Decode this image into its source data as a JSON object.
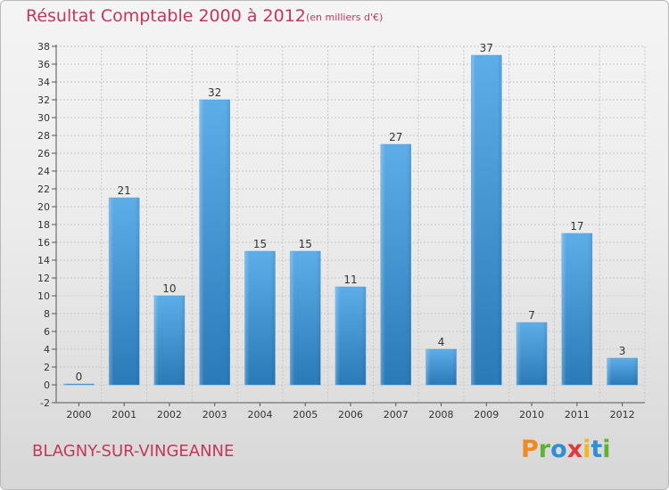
{
  "header": {
    "title": "Résultat Comptable 2000 à 2012",
    "subtitle": "(en milliers d'€)"
  },
  "footer": {
    "place": "BLAGNY-SUR-VINGEANNE",
    "logo_letters": [
      {
        "ch": "P",
        "color": "#f08a1e"
      },
      {
        "ch": "r",
        "color": "#5bb531"
      },
      {
        "ch": "o",
        "color": "#2f8fd6"
      },
      {
        "ch": "x",
        "color": "#e03b3b"
      },
      {
        "ch": "i",
        "color": "#f0b81e"
      },
      {
        "ch": "t",
        "color": "#2f8fd6"
      },
      {
        "ch": "i",
        "color": "#5bb531"
      }
    ]
  },
  "colors": {
    "title": "#c5365c",
    "bar_light": "#5dade8",
    "bar_dark": "#2a7ab8",
    "grid": "#c8c8c8",
    "axis": "#555555"
  },
  "chart_data": {
    "type": "bar",
    "title": "Résultat Comptable 2000 à 2012",
    "subtitle": "(en milliers d'€)",
    "categories": [
      "2000",
      "2001",
      "2002",
      "2003",
      "2004",
      "2005",
      "2006",
      "2007",
      "2008",
      "2009",
      "2010",
      "2011",
      "2012"
    ],
    "values": [
      0,
      21,
      10,
      32,
      15,
      15,
      11,
      27,
      4,
      37,
      7,
      17,
      3
    ],
    "xlabel": "",
    "ylabel": "",
    "ylim": [
      -2,
      38
    ],
    "yticks": [
      -2,
      0,
      2,
      4,
      6,
      8,
      10,
      12,
      14,
      16,
      18,
      20,
      22,
      24,
      26,
      28,
      30,
      32,
      34,
      36,
      38
    ],
    "grid": true,
    "data_labels": true
  }
}
